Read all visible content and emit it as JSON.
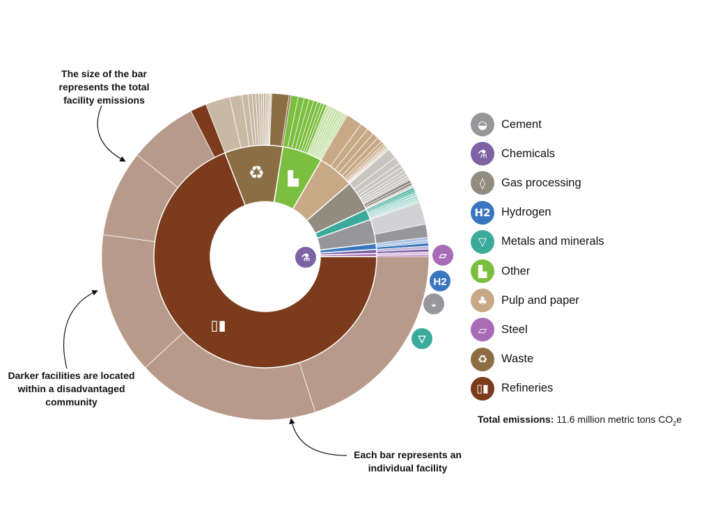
{
  "chart_data": {
    "type": "sunburst",
    "total_label": "Total emissions:",
    "total_value": "11.6 million metric tons CO",
    "total_sub": "2",
    "total_suffix": "e",
    "categories": [
      {
        "key": "refineries",
        "name": "Refineries",
        "color": "#7b3b1c",
        "facility_color": "#b89a8b",
        "dac_color": "#7b3b1c",
        "icon": "refinery-icon",
        "symbol": "▯▮",
        "facilities": [
          {
            "v": 20,
            "dac": false
          },
          {
            "v": 18,
            "dac": false
          },
          {
            "v": 14,
            "dac": false
          },
          {
            "v": 8.5,
            "dac": false
          },
          {
            "v": 6.8,
            "dac": false
          },
          {
            "v": 1.6,
            "dac": true
          }
        ]
      },
      {
        "key": "waste",
        "name": "Waste",
        "color": "#8c6e45",
        "facility_color": "#c8b9a4",
        "dac_color": "#8c6e45",
        "icon": "recycle-icon",
        "symbol": "♻",
        "facilities": [
          {
            "v": 2.4,
            "dac": false
          },
          {
            "v": 1.2,
            "dac": false
          },
          {
            "v": 0.6,
            "dac": false
          },
          {
            "v": 0.4,
            "dac": false
          },
          {
            "v": 0.35,
            "dac": false
          },
          {
            "v": 0.3,
            "dac": false
          },
          {
            "v": 0.25,
            "dac": false
          },
          {
            "v": 0.22,
            "dac": false
          },
          {
            "v": 0.2,
            "dac": false
          },
          {
            "v": 0.18,
            "dac": false
          },
          {
            "v": 0.16,
            "dac": false
          },
          {
            "v": 0.14,
            "dac": false
          },
          {
            "v": 0.12,
            "dac": false
          },
          {
            "v": 1.7,
            "dac": true
          },
          {
            "v": 0.2,
            "dac": true
          }
        ]
      },
      {
        "key": "other",
        "name": "Other",
        "color": "#7cbe3f",
        "facility_color": "#c3dfa3",
        "dac_color": "#7cbe3f",
        "icon": "factory-icon",
        "symbol": "▙",
        "facilities": [
          {
            "v": 0.7,
            "dac": true
          },
          {
            "v": 0.6,
            "dac": true
          },
          {
            "v": 0.5,
            "dac": true
          },
          {
            "v": 0.45,
            "dac": true
          },
          {
            "v": 0.4,
            "dac": true
          },
          {
            "v": 0.35,
            "dac": true
          },
          {
            "v": 0.3,
            "dac": true
          },
          {
            "v": 0.3,
            "dac": true
          },
          {
            "v": 0.3,
            "dac": false
          },
          {
            "v": 0.3,
            "dac": false
          },
          {
            "v": 0.25,
            "dac": false
          },
          {
            "v": 0.25,
            "dac": false
          },
          {
            "v": 0.25,
            "dac": false
          },
          {
            "v": 0.25,
            "dac": false
          },
          {
            "v": 0.2,
            "dac": false
          },
          {
            "v": 0.2,
            "dac": false
          },
          {
            "v": 0.2,
            "dac": false
          }
        ]
      },
      {
        "key": "pulp",
        "name": "Pulp and paper",
        "color": "#c8a987",
        "facility_color": "#c8a987",
        "dac_color": "#c8a987",
        "icon": "tree-icon",
        "symbol": "♣",
        "facilities": [
          {
            "v": 1.6,
            "dac": false
          },
          {
            "v": 0.8,
            "dac": false
          },
          {
            "v": 0.7,
            "dac": false
          },
          {
            "v": 0.6,
            "dac": false
          },
          {
            "v": 0.5,
            "dac": false
          },
          {
            "v": 0.3,
            "dac": false
          },
          {
            "v": 0.2,
            "dac": false
          },
          {
            "v": 0.15,
            "dac": false
          },
          {
            "v": 0.12,
            "dac": false
          },
          {
            "v": 0.1,
            "dac": false
          },
          {
            "v": 0.1,
            "dac": false
          },
          {
            "v": 0.08,
            "dac": false
          }
        ]
      },
      {
        "key": "gas",
        "name": "Gas processing",
        "color": "#918b80",
        "facility_color": "#c8c6c1",
        "dac_color": "#918b80",
        "icon": "flame-icon",
        "symbol": "◊",
        "facilities": [
          {
            "v": 1.0,
            "dac": false
          },
          {
            "v": 0.7,
            "dac": false
          },
          {
            "v": 0.45,
            "dac": false
          },
          {
            "v": 0.4,
            "dac": false
          },
          {
            "v": 0.3,
            "dac": false
          },
          {
            "v": 0.3,
            "dac": false
          },
          {
            "v": 0.25,
            "dac": false
          },
          {
            "v": 0.2,
            "dac": false
          },
          {
            "v": 0.3,
            "dac": true
          },
          {
            "v": 0.25,
            "dac": true
          },
          {
            "v": 0.15,
            "dac": false
          },
          {
            "v": 0.12,
            "dac": false
          }
        ]
      },
      {
        "key": "metals",
        "name": "Metals and minerals",
        "color": "#3aaa9a",
        "facility_color": "#a9d9d2",
        "dac_color": "#3aaa9a",
        "icon": "minecart-icon",
        "symbol": "▽",
        "facilities": [
          {
            "v": 0.2,
            "dac": true
          },
          {
            "v": 0.18,
            "dac": true
          },
          {
            "v": 0.15,
            "dac": true
          },
          {
            "v": 0.3,
            "dac": false
          },
          {
            "v": 0.25,
            "dac": false
          },
          {
            "v": 0.2,
            "dac": false
          },
          {
            "v": 0.15,
            "dac": false
          },
          {
            "v": 0.12,
            "dac": false
          }
        ]
      },
      {
        "key": "cement",
        "name": "Cement",
        "color": "#97979a",
        "facility_color": "#d2d2d4",
        "dac_color": "#97979a",
        "icon": "cement-icon",
        "symbol": "◒",
        "facilities": [
          {
            "v": 2.2,
            "dac": false
          },
          {
            "v": 1.3,
            "dac": true
          }
        ]
      },
      {
        "key": "hydrogen",
        "name": "Hydrogen",
        "color": "#3a76bf",
        "facility_color": "#a6c2e2",
        "dac_color": "#3a76bf",
        "icon": "hydrogen-icon",
        "symbol": "H2",
        "facilities": [
          {
            "v": 0.3,
            "dac": false
          },
          {
            "v": 0.25,
            "dac": false
          },
          {
            "v": 0.3,
            "dac": true
          }
        ]
      },
      {
        "key": "chemicals",
        "name": "Chemicals",
        "color": "#7d63a3",
        "facility_color": "#c3b6d6",
        "dac_color": "#7d63a3",
        "icon": "flask-icon",
        "symbol": "⚗",
        "facilities": [
          {
            "v": 0.3,
            "dac": false
          },
          {
            "v": 0.28,
            "dac": true
          }
        ]
      },
      {
        "key": "steel",
        "name": "Steel",
        "color": "#a86bb5",
        "facility_color": "#dcc6e1",
        "dac_color": "#a86bb5",
        "icon": "steel-icon",
        "symbol": "▱",
        "facilities": [
          {
            "v": 0.3,
            "dac": false
          },
          {
            "v": 0.15,
            "dac": true
          }
        ]
      }
    ],
    "legend_order": [
      "cement",
      "chemicals",
      "gas",
      "hydrogen",
      "metals",
      "other",
      "pulp",
      "steel",
      "waste",
      "refineries"
    ],
    "annotations": {
      "size": "The size of the bar represents the total facility emissions",
      "dac": "Darker facilities are located within a disadvantaged community",
      "bar": "Each bar represents an individual facility"
    },
    "legend_labels": {
      "cement": "Cement",
      "chemicals": "Chemicals",
      "gas": "Gas processing",
      "hydrogen": "Hydrogen",
      "metals": "Metals and minerals",
      "other": "Other",
      "pulp": "Pulp and paper",
      "steel": "Steel",
      "waste": "Waste",
      "refineries": "Refineries"
    },
    "outer_icons": [
      "steel",
      "hydrogen",
      "cement",
      "metals",
      "chemicals"
    ]
  }
}
